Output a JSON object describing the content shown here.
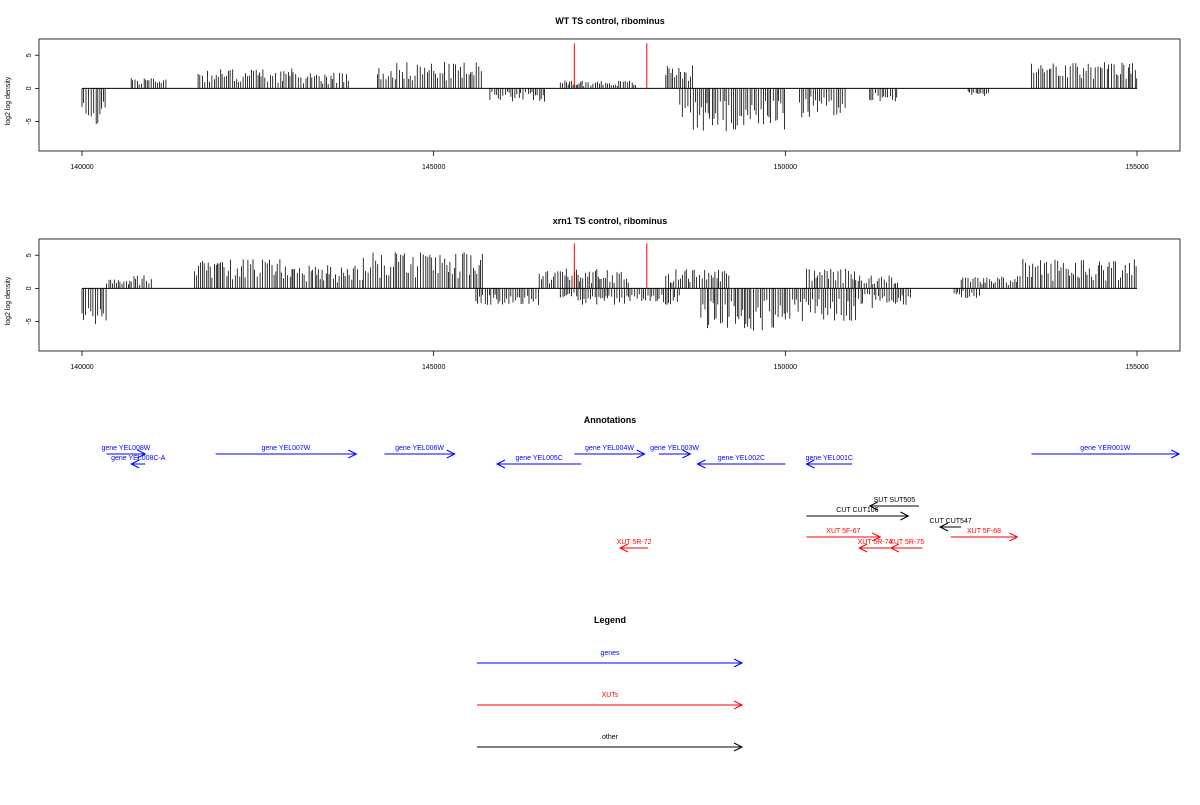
{
  "colors": {
    "gene": "#0000ff",
    "xut": "#ff0000",
    "other": "#000000",
    "marker": "#ff0000",
    "bars": "#000000"
  },
  "chart_data": [
    {
      "type": "bar",
      "title": "WT TS control, ribominus",
      "xlabel": "",
      "ylabel": "log2 log density",
      "xlim": [
        139600,
        155600
      ],
      "ylim": [
        -9,
        7
      ],
      "xticks": [
        140000,
        145000,
        150000,
        155000
      ],
      "yticks": [
        -5,
        0,
        5
      ],
      "marker_x": [
        147000,
        148030
      ],
      "grid": false,
      "legend": "none",
      "segments": [
        {
          "start": 140000,
          "end": 140350,
          "sign": -1,
          "amp": 5.5
        },
        {
          "start": 140700,
          "end": 141200,
          "sign": 1,
          "amp": 1.8
        },
        {
          "start": 141650,
          "end": 143000,
          "sign": 1,
          "amp": 3
        },
        {
          "start": 143000,
          "end": 143800,
          "sign": 1,
          "amp": 2.5
        },
        {
          "start": 144200,
          "end": 145700,
          "sign": 1,
          "amp": 4
        },
        {
          "start": 145800,
          "end": 146600,
          "sign": -1,
          "amp": 2
        },
        {
          "start": 146800,
          "end": 147900,
          "sign": 1,
          "amp": 1.2
        },
        {
          "start": 148300,
          "end": 148700,
          "sign": 1,
          "amp": 3.5
        },
        {
          "start": 148500,
          "end": 150000,
          "sign": -1,
          "amp": 6.5
        },
        {
          "start": 150200,
          "end": 150850,
          "sign": -1,
          "amp": 4.5
        },
        {
          "start": 151200,
          "end": 151600,
          "sign": -1,
          "amp": 2
        },
        {
          "start": 152600,
          "end": 152900,
          "sign": -1,
          "amp": 1.2
        },
        {
          "start": 153500,
          "end": 155000,
          "sign": 1,
          "amp": 4
        }
      ]
    },
    {
      "type": "bar",
      "title": "xrn1 TS control, ribominus",
      "xlabel": "",
      "ylabel": "log2 log density",
      "xlim": [
        139600,
        155600
      ],
      "ylim": [
        -9,
        7
      ],
      "xticks": [
        140000,
        145000,
        150000,
        155000
      ],
      "yticks": [
        -5,
        0,
        5
      ],
      "marker_x": [
        147000,
        148030
      ],
      "grid": false,
      "legend": "none",
      "segments": [
        {
          "start": 140000,
          "end": 140350,
          "sign": -1,
          "amp": 5.5
        },
        {
          "start": 140350,
          "end": 141000,
          "sign": 1,
          "amp": 2
        },
        {
          "start": 141600,
          "end": 143000,
          "sign": 1,
          "amp": 4.5
        },
        {
          "start": 143000,
          "end": 144000,
          "sign": 1,
          "amp": 3.5
        },
        {
          "start": 144000,
          "end": 145700,
          "sign": 1,
          "amp": 5.5
        },
        {
          "start": 145600,
          "end": 146500,
          "sign": -1,
          "amp": 2.5
        },
        {
          "start": 146500,
          "end": 147800,
          "sign": 1,
          "amp": 3
        },
        {
          "start": 146800,
          "end": 148500,
          "sign": -1,
          "amp": 2.5
        },
        {
          "start": 148300,
          "end": 149200,
          "sign": 1,
          "amp": 3
        },
        {
          "start": 148800,
          "end": 150000,
          "sign": -1,
          "amp": 6.5
        },
        {
          "start": 150000,
          "end": 151000,
          "sign": -1,
          "amp": 5
        },
        {
          "start": 150300,
          "end": 151000,
          "sign": 1,
          "amp": 3
        },
        {
          "start": 151000,
          "end": 151800,
          "sign": -1,
          "amp": 3
        },
        {
          "start": 151000,
          "end": 151600,
          "sign": 1,
          "amp": 2
        },
        {
          "start": 152500,
          "end": 153300,
          "sign": 1,
          "amp": 1.8
        },
        {
          "start": 152400,
          "end": 152800,
          "sign": -1,
          "amp": 1.5
        },
        {
          "start": 153300,
          "end": 155000,
          "sign": 1,
          "amp": 4.5
        }
      ]
    }
  ],
  "annotations": {
    "title": "Annotations",
    "features": [
      {
        "label": "gene YEL008W",
        "type": "gene",
        "dir": "right",
        "start": 140350,
        "end": 140900,
        "row": 1
      },
      {
        "label": "gene YEL008C-A",
        "type": "gene",
        "dir": "left",
        "start": 140700,
        "end": 140900,
        "row": 2
      },
      {
        "label": "gene YEL007W",
        "type": "gene",
        "dir": "right",
        "start": 141900,
        "end": 143900,
        "row": 1
      },
      {
        "label": "gene YEL006W",
        "type": "gene",
        "dir": "right",
        "start": 144300,
        "end": 145300,
        "row": 1
      },
      {
        "label": "gene YEL005C",
        "type": "gene",
        "dir": "left",
        "start": 145900,
        "end": 147100,
        "row": 3
      },
      {
        "label": "gene YEL004W",
        "type": "gene",
        "dir": "right",
        "start": 147000,
        "end": 148000,
        "row": 1
      },
      {
        "label": "gene YEL003W",
        "type": "gene",
        "dir": "right",
        "start": 148200,
        "end": 148650,
        "row": 1
      },
      {
        "label": "gene YEL002C",
        "type": "gene",
        "dir": "left",
        "start": 148750,
        "end": 150000,
        "row": 3
      },
      {
        "label": "gene YEL001C",
        "type": "gene",
        "dir": "left",
        "start": 150300,
        "end": 150950,
        "row": 3
      },
      {
        "label": "gene YER001W",
        "type": "gene",
        "dir": "right",
        "start": 153500,
        "end": 155600,
        "row": 1
      },
      {
        "label": "SUT SUT505",
        "type": "other",
        "dir": "left",
        "start": 151200,
        "end": 151900,
        "row": 5
      },
      {
        "label": "CUT CUT106",
        "type": "other",
        "dir": "right",
        "start": 150300,
        "end": 151750,
        "row": 6
      },
      {
        "label": "CUT CUT547",
        "type": "other",
        "dir": "left",
        "start": 152200,
        "end": 152500,
        "row": 7
      },
      {
        "label": "XUT 5F-67",
        "type": "xut",
        "dir": "right",
        "start": 150300,
        "end": 151350,
        "row": 8
      },
      {
        "label": "XUT 5F-68",
        "type": "xut",
        "dir": "right",
        "start": 152350,
        "end": 153300,
        "row": 8
      },
      {
        "label": "XUT 5R-72",
        "type": "xut",
        "dir": "left",
        "start": 147650,
        "end": 148050,
        "row": 9
      },
      {
        "label": "XUT 5R-74",
        "type": "xut",
        "dir": "left",
        "start": 151050,
        "end": 151500,
        "row": 9
      },
      {
        "label": "XUT 5R-75",
        "type": "xut",
        "dir": "left",
        "start": 151500,
        "end": 151950,
        "row": 9
      }
    ]
  },
  "legend": {
    "title": "Legend",
    "items": [
      {
        "label": "genes",
        "type": "gene"
      },
      {
        "label": "XUTs",
        "type": "xut"
      },
      {
        "label": "other",
        "type": "other"
      }
    ]
  }
}
